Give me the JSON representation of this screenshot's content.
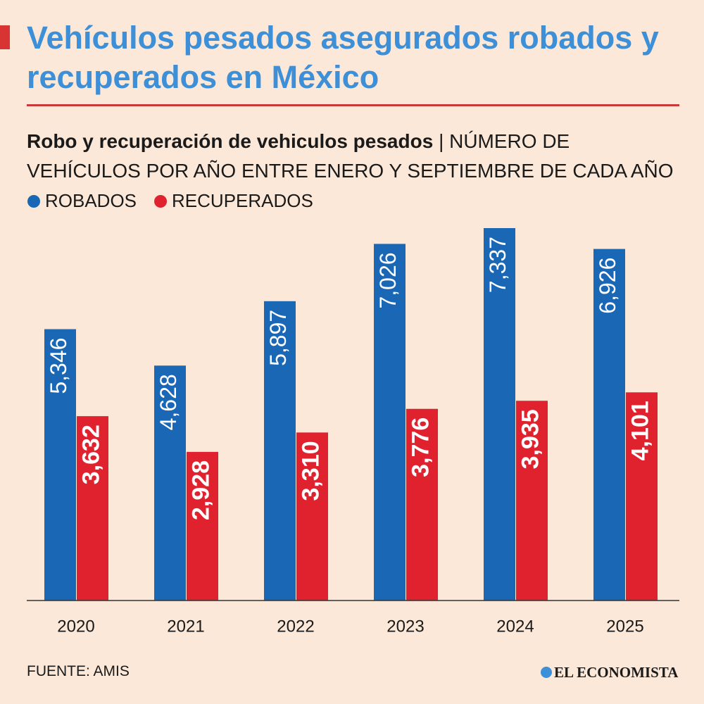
{
  "chart_data": {
    "type": "bar",
    "title": "Vehículos pesados asegurados robados y recuperados en México",
    "subtitle_bold": "Robo y recuperación de vehiculos pesados",
    "subtitle": "| NÚMERO DE VEHÍCULOS POR AÑO ENTRE ENERO Y SEPTIEMBRE DE CADA AÑO",
    "categories": [
      "2020",
      "2021",
      "2022",
      "2023",
      "2024",
      "2025"
    ],
    "series": [
      {
        "name": "ROBADOS",
        "color": "#1a67b5",
        "values": [
          5346,
          4628,
          5897,
          7026,
          7337,
          6926
        ],
        "value_labels": [
          "5,346",
          "4,628",
          "5,897",
          "7,026",
          "7,337",
          "6,926"
        ]
      },
      {
        "name": "RECUPERADOS",
        "color": "#e0222e",
        "values": [
          3632,
          2928,
          3310,
          3776,
          3935,
          4101
        ],
        "value_labels": [
          "3,632",
          "2,928",
          "3,310",
          "3,776",
          "3,935",
          "4,101"
        ]
      }
    ],
    "source": "FUENTE: AMIS",
    "brand": "EL ECONOMISTA"
  }
}
